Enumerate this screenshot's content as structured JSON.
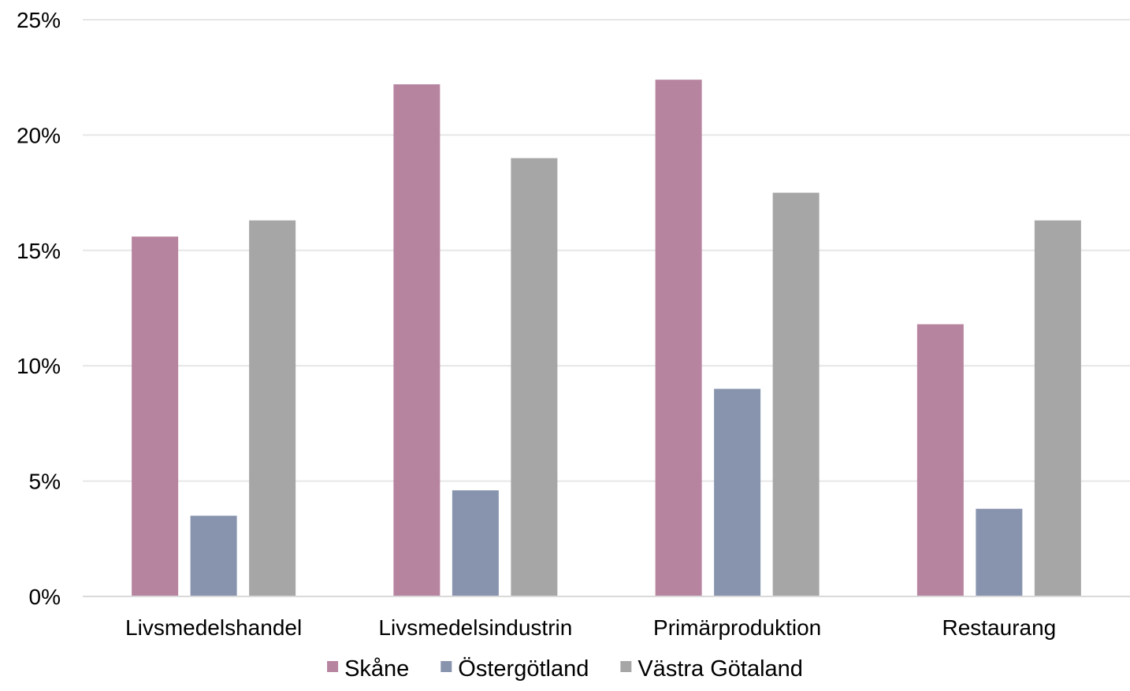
{
  "chart_data": {
    "type": "bar",
    "title": "",
    "xlabel": "",
    "ylabel": "",
    "categories": [
      "Livsmedelshandel",
      "Livsmedelsindustrin",
      "Primärproduktion",
      "Restaurang"
    ],
    "series": [
      {
        "name": "Skåne",
        "color": "#b784a0",
        "values": [
          15.6,
          22.2,
          22.4,
          11.8
        ]
      },
      {
        "name": "Östergötland",
        "color": "#8894ae",
        "values": [
          3.5,
          4.6,
          9.0,
          3.8
        ]
      },
      {
        "name": "Västra Götaland",
        "color": "#a6a6a6",
        "values": [
          16.3,
          19.0,
          17.5,
          16.3
        ]
      }
    ],
    "ylim": [
      0,
      25
    ],
    "yticks": [
      0,
      5,
      10,
      15,
      20,
      25
    ],
    "ytick_labels": [
      "0%",
      "5%",
      "10%",
      "15%",
      "20%",
      "25%"
    ],
    "grid": true,
    "gridline_color": "#e6e6e6",
    "legend_position": "bottom"
  }
}
